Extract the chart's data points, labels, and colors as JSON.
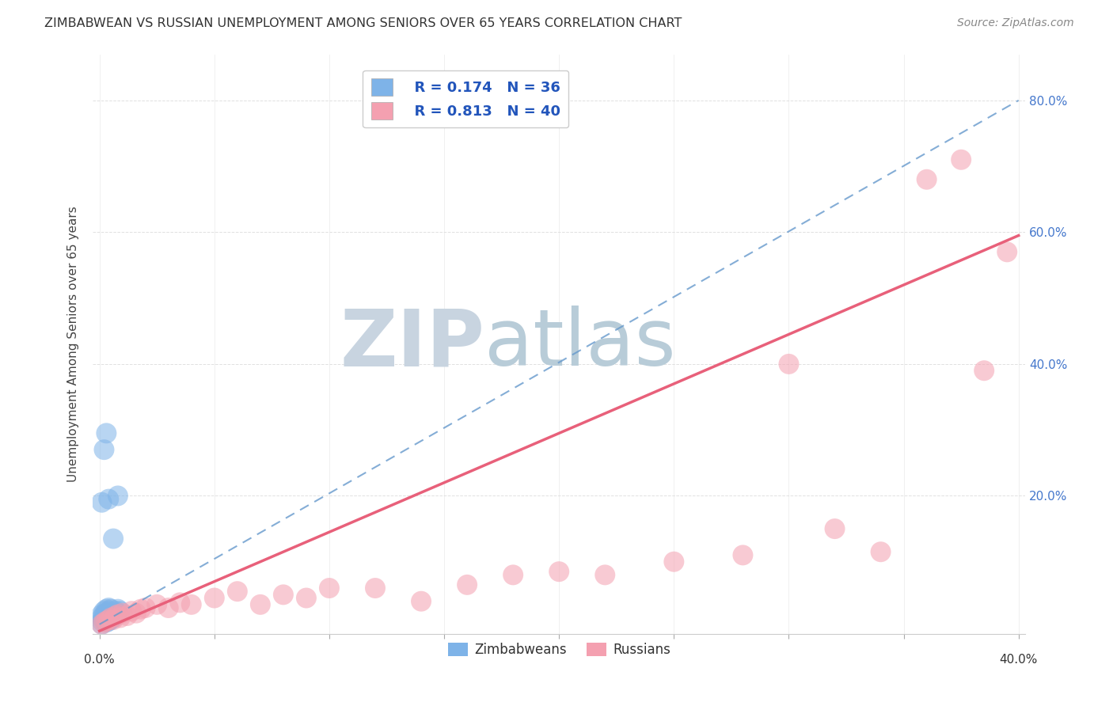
{
  "title": "ZIMBABWEAN VS RUSSIAN UNEMPLOYMENT AMONG SENIORS OVER 65 YEARS CORRELATION CHART",
  "source": "Source: ZipAtlas.com",
  "ylabel": "Unemployment Among Seniors over 65 years",
  "xlim": [
    -0.003,
    0.403
  ],
  "ylim": [
    -0.01,
    0.87
  ],
  "xticks_labeled": [
    0.0,
    0.4
  ],
  "xtick_labels": [
    "0.0%",
    "40.0%"
  ],
  "yticks_labeled": [
    0.2,
    0.4,
    0.6,
    0.8
  ],
  "ytick_labels": [
    "20.0%",
    "40.0%",
    "60.0%",
    "80.0%"
  ],
  "yticks_minor": [
    0.0,
    0.1,
    0.2,
    0.3,
    0.4,
    0.5,
    0.6,
    0.7,
    0.8
  ],
  "xticks_minor": [
    0.0,
    0.05,
    0.1,
    0.15,
    0.2,
    0.25,
    0.3,
    0.35,
    0.4
  ],
  "legend_labels": [
    "Zimbabweans",
    "Russians"
  ],
  "legend_R": [
    "R = 0.174",
    "R = 0.813"
  ],
  "legend_N": [
    "N = 36",
    "N = 40"
  ],
  "zimbabwe_color": "#7eb3e8",
  "russia_color": "#f4a0b0",
  "zimbabwe_line_color": "#6699cc",
  "russia_line_color": "#e8607a",
  "watermark_zip": "ZIP",
  "watermark_atlas": "atlas",
  "watermark_color_zip": "#c8d4e0",
  "watermark_color_atlas": "#b8ccd8",
  "background_color": "#ffffff",
  "grid_color": "#dddddd",
  "zimbabwe_x": [
    0.001,
    0.001,
    0.001,
    0.001,
    0.002,
    0.002,
    0.002,
    0.002,
    0.003,
    0.003,
    0.003,
    0.003,
    0.003,
    0.003,
    0.004,
    0.004,
    0.004,
    0.004,
    0.004,
    0.005,
    0.005,
    0.005,
    0.005,
    0.006,
    0.006,
    0.007,
    0.007,
    0.008,
    0.008,
    0.009,
    0.001,
    0.002,
    0.003,
    0.004,
    0.006,
    0.008
  ],
  "zimbabwe_y": [
    0.005,
    0.01,
    0.015,
    0.02,
    0.01,
    0.015,
    0.02,
    0.025,
    0.008,
    0.012,
    0.015,
    0.018,
    0.022,
    0.028,
    0.01,
    0.015,
    0.02,
    0.025,
    0.03,
    0.012,
    0.018,
    0.022,
    0.028,
    0.015,
    0.02,
    0.018,
    0.025,
    0.02,
    0.028,
    0.025,
    0.19,
    0.27,
    0.295,
    0.195,
    0.135,
    0.2
  ],
  "russia_x": [
    0.001,
    0.002,
    0.003,
    0.004,
    0.005,
    0.006,
    0.007,
    0.008,
    0.009,
    0.01,
    0.012,
    0.014,
    0.016,
    0.018,
    0.02,
    0.025,
    0.03,
    0.035,
    0.04,
    0.05,
    0.06,
    0.07,
    0.08,
    0.09,
    0.1,
    0.12,
    0.14,
    0.16,
    0.18,
    0.2,
    0.22,
    0.25,
    0.28,
    0.3,
    0.32,
    0.34,
    0.36,
    0.375,
    0.385,
    0.395
  ],
  "russia_y": [
    0.005,
    0.008,
    0.01,
    0.012,
    0.015,
    0.012,
    0.018,
    0.02,
    0.015,
    0.022,
    0.018,
    0.025,
    0.022,
    0.028,
    0.03,
    0.035,
    0.03,
    0.038,
    0.035,
    0.045,
    0.055,
    0.035,
    0.05,
    0.045,
    0.06,
    0.06,
    0.04,
    0.065,
    0.08,
    0.085,
    0.08,
    0.1,
    0.11,
    0.4,
    0.15,
    0.115,
    0.68,
    0.71,
    0.39,
    0.57
  ],
  "blue_line_x0": 0.0,
  "blue_line_y0": 0.005,
  "blue_line_x1": 0.4,
  "blue_line_y1": 0.8,
  "pink_line_x0": 0.0,
  "pink_line_y0": -0.005,
  "pink_line_x1": 0.4,
  "pink_line_y1": 0.595
}
